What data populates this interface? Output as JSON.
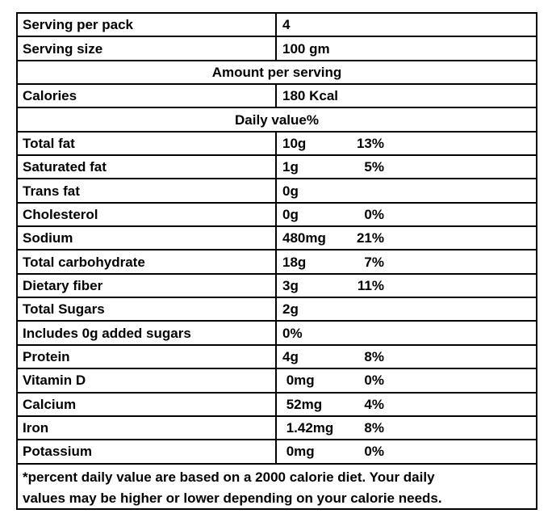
{
  "table": {
    "rows": [
      {
        "type": "pair",
        "label": "Serving per pack",
        "value": "4"
      },
      {
        "type": "pair",
        "label": "Serving size",
        "value": "100 gm"
      },
      {
        "type": "span",
        "text": "Amount per serving"
      },
      {
        "type": "pair",
        "label": "Calories",
        "value": "180 Kcal"
      },
      {
        "type": "span",
        "text": "Daily value%"
      },
      {
        "type": "nutrient",
        "label": "Total fat",
        "amount": "10g",
        "dv": "13%"
      },
      {
        "type": "nutrient",
        "label": "Saturated fat",
        "amount": "1g",
        "dv": "5%"
      },
      {
        "type": "nutrient",
        "label": "Trans fat",
        "amount": "0g",
        "dv": ""
      },
      {
        "type": "nutrient",
        "label": "Cholesterol",
        "amount": "0g",
        "dv": "0%"
      },
      {
        "type": "nutrient",
        "label": "Sodium",
        "amount": "480mg",
        "dv": "21%"
      },
      {
        "type": "nutrient",
        "label": "Total carbohydrate",
        "amount": "18g",
        "dv": "7%"
      },
      {
        "type": "nutrient",
        "label": "Dietary fiber",
        "amount": "3g",
        "dv": "11%"
      },
      {
        "type": "nutrient",
        "label": "Total Sugars",
        "amount": "2g",
        "dv": ""
      },
      {
        "type": "nutrient",
        "label": "Includes 0g added sugars",
        "amount": "0%",
        "dv": ""
      },
      {
        "type": "nutrient",
        "label": "Protein",
        "amount": "4g",
        "dv": "8%"
      },
      {
        "type": "nutrient",
        "label": "Vitamin D",
        "amount": " 0mg",
        "dv": "0%"
      },
      {
        "type": "nutrient",
        "label": "Calcium",
        "amount": " 52mg",
        "dv": "4%"
      },
      {
        "type": "nutrient",
        "label": "Iron",
        "amount": " 1.42mg",
        "dv": "8%"
      },
      {
        "type": "nutrient",
        "label": "Potassium",
        "amount": " 0mg",
        "dv": "0%"
      },
      {
        "type": "footnote",
        "lines": [
          "*percent daily value are based on a 2000 calorie diet. Your daily",
          "values may be higher or lower depending on your calorie needs."
        ]
      }
    ],
    "colors": {
      "border": "#000000",
      "text": "#000000",
      "background": "#ffffff"
    }
  }
}
